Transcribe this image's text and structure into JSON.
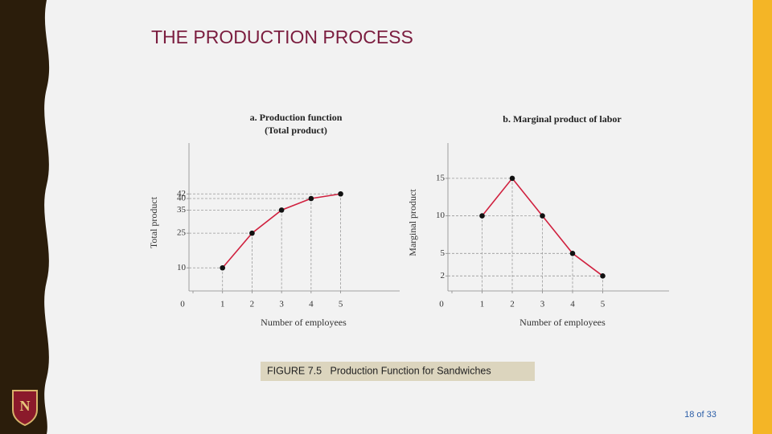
{
  "slide": {
    "title": "THE PRODUCTION PROCESS",
    "caption": "FIGURE 7.5   Production Function for Sandwiches",
    "page": "18 of 33"
  },
  "chart_data": [
    {
      "type": "line",
      "title": "a. Production function",
      "subtitle": "(Total product)",
      "x_label": "Number of employees",
      "y_label": "Total product",
      "x": [
        1,
        2,
        3,
        4,
        5
      ],
      "values": [
        10,
        25,
        35,
        40,
        42
      ],
      "color": "#d0213f",
      "marker_color": "#111111",
      "xlim": [
        0,
        7
      ],
      "ylim": [
        0,
        64
      ],
      "xticks": [
        0,
        1,
        2,
        3,
        4,
        5
      ],
      "yticks": [
        10,
        25,
        35,
        40,
        42
      ],
      "guides": true
    },
    {
      "type": "line",
      "title": "b. Marginal product of labor",
      "x_label": "Number of employees",
      "y_label": "Marginal product",
      "x": [
        1,
        2,
        3,
        4,
        5
      ],
      "values": [
        10,
        15,
        10,
        5,
        2
      ],
      "color": "#d0213f",
      "marker_color": "#111111",
      "xlim": [
        0,
        7.2
      ],
      "ylim": [
        0,
        19.7
      ],
      "xticks": [
        0,
        1,
        2,
        3,
        4,
        5
      ],
      "yticks": [
        2,
        5,
        10,
        15
      ],
      "guides": true
    }
  ]
}
